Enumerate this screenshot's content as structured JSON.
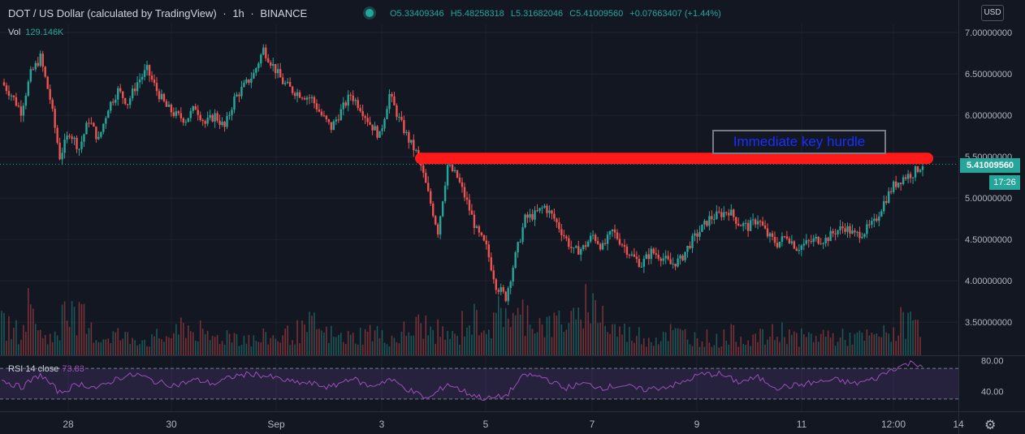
{
  "header": {
    "symbol": "DOT / US Dollar (calculated by TradingView)",
    "interval": "1h",
    "exchange": "BINANCE",
    "open": "O5.33409346",
    "high": "H5.48258318",
    "low": "L5.31682046",
    "close": "C5.41009560",
    "change": "+0.07663407 (+1.44%)"
  },
  "volume": {
    "label": "Vol",
    "value": "129.146K"
  },
  "rsi": {
    "label": "RSI 14 close",
    "value": "73.83"
  },
  "currency_button": "USD",
  "last_price": "5.41009560",
  "countdown": "17:26",
  "annotation": "Immediate key hurdle",
  "colors": {
    "up": "#26a69a",
    "down": "#ef5350",
    "rsi": "#9c4fba",
    "hurdle": "#ff1a1a"
  },
  "icons": {
    "settings": "gear-icon"
  },
  "chart_data": {
    "type": "candlestick",
    "price_axis": {
      "ticks": [
        7.0,
        6.5,
        6.0,
        5.5,
        5.0,
        4.5,
        4.0,
        3.5
      ],
      "tick_labels": [
        "7.00000000",
        "6.50000000",
        "6.00000000",
        "5.50000000",
        "5.00000000",
        "4.50000000",
        "4.00000000",
        "3.50000000"
      ],
      "ylim": [
        3.1,
        7.1
      ]
    },
    "rsi_axis": {
      "ticks": [
        80,
        40
      ],
      "tick_labels": [
        "80.00",
        "40.00"
      ],
      "bands": [
        70,
        30
      ],
      "ylim": [
        15,
        85
      ]
    },
    "x_tick_labels": [
      "28",
      "30",
      "Sep",
      "3",
      "5",
      "7",
      "9",
      "11",
      "12:00",
      "14"
    ],
    "price_path": [
      [
        0,
        6.4
      ],
      [
        2,
        6.25
      ],
      [
        4,
        6.05
      ],
      [
        6,
        6.5
      ],
      [
        8,
        6.7
      ],
      [
        10,
        6.2
      ],
      [
        12,
        5.5
      ],
      [
        14,
        5.8
      ],
      [
        16,
        5.6
      ],
      [
        18,
        5.95
      ],
      [
        20,
        5.7
      ],
      [
        22,
        6.1
      ],
      [
        24,
        6.3
      ],
      [
        26,
        6.15
      ],
      [
        28,
        6.4
      ],
      [
        30,
        6.55
      ],
      [
        32,
        6.3
      ],
      [
        34,
        6.1
      ],
      [
        36,
        6.0
      ],
      [
        38,
        5.95
      ],
      [
        40,
        6.1
      ],
      [
        42,
        5.9
      ],
      [
        44,
        6.0
      ],
      [
        46,
        5.85
      ],
      [
        48,
        6.2
      ],
      [
        50,
        6.35
      ],
      [
        52,
        6.5
      ],
      [
        54,
        6.8
      ],
      [
        56,
        6.6
      ],
      [
        58,
        6.4
      ],
      [
        60,
        6.3
      ],
      [
        62,
        6.25
      ],
      [
        64,
        6.2
      ],
      [
        66,
        6.0
      ],
      [
        68,
        5.85
      ],
      [
        70,
        6.05
      ],
      [
        72,
        6.25
      ],
      [
        74,
        6.1
      ],
      [
        76,
        5.9
      ],
      [
        78,
        5.75
      ],
      [
        80,
        6.25
      ],
      [
        82,
        5.95
      ],
      [
        84,
        5.7
      ],
      [
        86,
        5.5
      ],
      [
        88,
        5.05
      ],
      [
        90,
        4.6
      ],
      [
        92,
        5.4
      ],
      [
        94,
        5.25
      ],
      [
        96,
        4.95
      ],
      [
        98,
        4.6
      ],
      [
        100,
        4.4
      ],
      [
        102,
        3.95
      ],
      [
        104,
        3.8
      ],
      [
        106,
        4.3
      ],
      [
        108,
        4.75
      ],
      [
        110,
        4.8
      ],
      [
        112,
        4.9
      ],
      [
        114,
        4.75
      ],
      [
        116,
        4.55
      ],
      [
        118,
        4.35
      ],
      [
        120,
        4.4
      ],
      [
        122,
        4.55
      ],
      [
        124,
        4.4
      ],
      [
        126,
        4.6
      ],
      [
        128,
        4.45
      ],
      [
        130,
        4.3
      ],
      [
        132,
        4.2
      ],
      [
        134,
        4.35
      ],
      [
        136,
        4.3
      ],
      [
        138,
        4.2
      ],
      [
        140,
        4.25
      ],
      [
        142,
        4.45
      ],
      [
        144,
        4.6
      ],
      [
        146,
        4.75
      ],
      [
        148,
        4.8
      ],
      [
        150,
        4.85
      ],
      [
        152,
        4.7
      ],
      [
        154,
        4.65
      ],
      [
        156,
        4.75
      ],
      [
        158,
        4.55
      ],
      [
        160,
        4.45
      ],
      [
        162,
        4.55
      ],
      [
        164,
        4.4
      ],
      [
        166,
        4.45
      ],
      [
        168,
        4.5
      ],
      [
        170,
        4.5
      ],
      [
        172,
        4.6
      ],
      [
        174,
        4.65
      ],
      [
        176,
        4.55
      ],
      [
        178,
        4.6
      ],
      [
        180,
        4.7
      ],
      [
        182,
        4.95
      ],
      [
        184,
        5.15
      ],
      [
        186,
        5.25
      ],
      [
        188,
        5.3
      ],
      [
        190,
        5.41
      ]
    ],
    "rsi_path": [
      [
        0,
        55
      ],
      [
        4,
        45
      ],
      [
        8,
        62
      ],
      [
        12,
        38
      ],
      [
        16,
        50
      ],
      [
        20,
        44
      ],
      [
        24,
        58
      ],
      [
        28,
        62
      ],
      [
        32,
        52
      ],
      [
        36,
        48
      ],
      [
        40,
        55
      ],
      [
        44,
        50
      ],
      [
        48,
        60
      ],
      [
        52,
        63
      ],
      [
        56,
        58
      ],
      [
        60,
        52
      ],
      [
        64,
        50
      ],
      [
        68,
        45
      ],
      [
        72,
        58
      ],
      [
        76,
        46
      ],
      [
        80,
        56
      ],
      [
        84,
        42
      ],
      [
        88,
        30
      ],
      [
        92,
        50
      ],
      [
        96,
        38
      ],
      [
        100,
        30
      ],
      [
        104,
        34
      ],
      [
        108,
        62
      ],
      [
        112,
        58
      ],
      [
        116,
        44
      ],
      [
        120,
        50
      ],
      [
        124,
        45
      ],
      [
        128,
        48
      ],
      [
        132,
        42
      ],
      [
        136,
        45
      ],
      [
        140,
        50
      ],
      [
        144,
        62
      ],
      [
        148,
        63
      ],
      [
        152,
        52
      ],
      [
        156,
        58
      ],
      [
        160,
        45
      ],
      [
        164,
        48
      ],
      [
        168,
        52
      ],
      [
        172,
        55
      ],
      [
        176,
        50
      ],
      [
        180,
        56
      ],
      [
        184,
        70
      ],
      [
        188,
        78
      ],
      [
        190,
        74
      ]
    ],
    "volume": [
      0.5,
      0.4,
      0.8,
      0.35,
      0.3,
      1.0,
      0.6,
      0.4,
      0.3,
      0.35,
      0.3,
      0.3,
      0.25,
      0.3,
      0.35,
      0.5,
      0.4,
      0.3,
      0.3,
      0.35,
      0.3,
      0.25,
      0.3,
      0.3,
      0.35,
      0.4,
      0.5,
      0.35,
      0.3,
      0.3,
      0.35,
      0.4,
      0.3,
      0.3,
      0.4,
      0.5,
      0.4,
      0.35,
      0.3,
      0.55,
      0.6,
      0.5,
      0.8,
      0.6,
      0.7,
      0.55,
      0.5,
      0.6,
      0.55,
      0.9,
      0.8,
      0.45,
      0.4,
      0.35,
      0.3,
      0.3,
      0.4,
      0.35,
      0.3,
      0.3,
      0.25,
      0.35,
      0.3,
      0.3,
      0.3,
      0.35,
      0.4,
      0.3,
      0.3,
      0.35,
      0.3,
      0.3,
      0.3,
      0.3,
      0.35,
      0.4,
      0.55,
      0.6
    ],
    "hurdle_level": 5.48
  }
}
